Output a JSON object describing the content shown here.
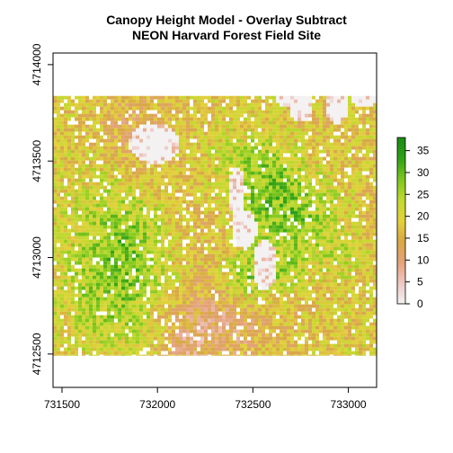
{
  "chart_data": {
    "type": "heatmap",
    "title": "Canopy Height Model - Overlay Subtract",
    "subtitle": "NEON Harvard Forest Field Site",
    "xlabel": "",
    "ylabel": "",
    "xlim": [
      731453,
      733148
    ],
    "ylim": [
      4712327,
      4714060
    ],
    "raster_extent": {
      "x": [
        731453,
        733148
      ],
      "y": [
        4712491,
        4713838
      ]
    },
    "x_ticks": [
      731500,
      732000,
      732500,
      733000
    ],
    "y_ticks": [
      4712500,
      4713000,
      4713500,
      4714000
    ],
    "colorbar": {
      "min": 0,
      "max": 38,
      "ticks": [
        0,
        5,
        10,
        15,
        20,
        25,
        30,
        35
      ],
      "colors": [
        "#f2f2f2",
        "#eec7c2",
        "#e4a27a",
        "#d8a845",
        "#e3d23b",
        "#c0d92f",
        "#7cc61c",
        "#2ea116",
        "#1b8a16"
      ]
    },
    "legend_position": "right",
    "grid": false,
    "no_data_regions": "white / light gray gaps (low canopy, roads, clearings)"
  }
}
